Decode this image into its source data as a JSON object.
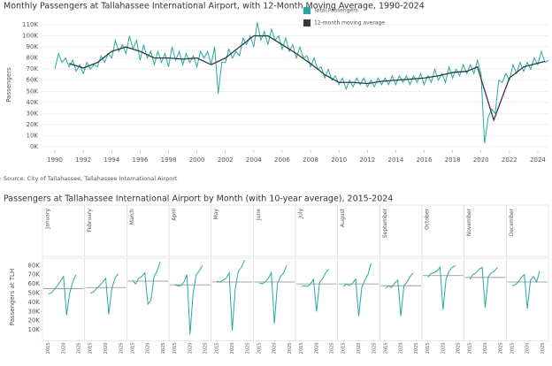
{
  "chart_data": [
    {
      "type": "line",
      "title": "Monthly Passengers at Tallahassee International Airport, with 12-Month Moving Average, 1990-2024",
      "y_label": "Passengers",
      "source": "Source: City of Tallahassee, Tallahassee International Airport",
      "xlim": [
        1989,
        2024.75
      ],
      "xticks": [
        1990,
        1992,
        1994,
        1996,
        1998,
        2000,
        2002,
        2004,
        2006,
        2008,
        2010,
        2012,
        2014,
        2016,
        2018,
        2020,
        2022,
        2024
      ],
      "ylim": [
        0,
        110000
      ],
      "yticks": [
        {
          "value": 0,
          "label": "0K"
        },
        {
          "value": 10000,
          "label": "10K"
        },
        {
          "value": 20000,
          "label": "20K"
        },
        {
          "value": 30000,
          "label": "30K"
        },
        {
          "value": 40000,
          "label": "40K"
        },
        {
          "value": 50000,
          "label": "50K"
        },
        {
          "value": 60000,
          "label": "60K"
        },
        {
          "value": 70000,
          "label": "70K"
        },
        {
          "value": 80000,
          "label": "80K"
        },
        {
          "value": 90000,
          "label": "90K"
        },
        {
          "value": 100000,
          "label": "100K"
        },
        {
          "value": 110000,
          "label": "110K"
        }
      ],
      "grid": true,
      "legend": "top",
      "series": [
        {
          "name": "Total Passengers",
          "color": "#27a9a1",
          "x": [
            1990,
            1990.25,
            1990.5,
            1990.75,
            1991,
            1991.25,
            1991.5,
            1991.75,
            1992,
            1992.25,
            1992.5,
            1992.75,
            1993,
            1993.25,
            1993.5,
            1993.75,
            1994,
            1994.25,
            1994.5,
            1994.75,
            1995,
            1995.25,
            1995.5,
            1995.75,
            1996,
            1996.25,
            1996.5,
            1996.75,
            1997,
            1997.25,
            1997.5,
            1997.75,
            1998,
            1998.25,
            1998.5,
            1998.75,
            1999,
            1999.25,
            1999.5,
            1999.75,
            2000,
            2000.25,
            2000.5,
            2000.75,
            2001,
            2001.25,
            2001.5,
            2001.75,
            2002,
            2002.25,
            2002.5,
            2002.75,
            2003,
            2003.25,
            2003.5,
            2003.75,
            2004,
            2004.25,
            2004.5,
            2004.75,
            2005,
            2005.25,
            2005.5,
            2005.75,
            2006,
            2006.25,
            2006.5,
            2006.75,
            2007,
            2007.25,
            2007.5,
            2007.75,
            2008,
            2008.25,
            2008.5,
            2008.75,
            2009,
            2009.25,
            2009.5,
            2009.75,
            2010,
            2010.25,
            2010.5,
            2010.75,
            2011,
            2011.25,
            2011.5,
            2011.75,
            2012,
            2012.25,
            2012.5,
            2012.75,
            2013,
            2013.25,
            2013.5,
            2013.75,
            2014,
            2014.25,
            2014.5,
            2014.75,
            2015,
            2015.25,
            2015.5,
            2015.75,
            2016,
            2016.25,
            2016.5,
            2016.75,
            2017,
            2017.25,
            2017.5,
            2017.75,
            2018,
            2018.25,
            2018.5,
            2018.75,
            2019,
            2019.25,
            2019.5,
            2019.75,
            2020,
            2020.25,
            2020.5,
            2020.75,
            2021,
            2021.25,
            2021.5,
            2021.75,
            2022,
            2022.25,
            2022.5,
            2022.75,
            2023,
            2023.25,
            2023.5,
            2023.75,
            2024,
            2024.25,
            2024.5,
            2024.75
          ],
          "values": [
            70000,
            84000,
            76000,
            80000,
            72000,
            78000,
            68000,
            74000,
            66000,
            76000,
            70000,
            74000,
            72000,
            82000,
            76000,
            84000,
            80000,
            96000,
            86000,
            92000,
            84000,
            100000,
            88000,
            96000,
            78000,
            92000,
            80000,
            86000,
            74000,
            86000,
            76000,
            84000,
            72000,
            90000,
            78000,
            86000,
            74000,
            84000,
            76000,
            82000,
            72000,
            86000,
            80000,
            86000,
            74000,
            90000,
            48000,
            76000,
            76000,
            88000,
            80000,
            86000,
            82000,
            98000,
            92000,
            100000,
            90000,
            112000,
            96000,
            104000,
            92000,
            106000,
            96000,
            100000,
            88000,
            98000,
            86000,
            92000,
            80000,
            90000,
            80000,
            82000,
            72000,
            80000,
            70000,
            72000,
            62000,
            70000,
            60000,
            64000,
            56000,
            62000,
            52000,
            60000,
            54000,
            62000,
            56000,
            62000,
            54000,
            60000,
            54000,
            62000,
            56000,
            62000,
            56000,
            64000,
            56000,
            64000,
            58000,
            64000,
            56000,
            64000,
            58000,
            66000,
            56000,
            64000,
            58000,
            70000,
            60000,
            66000,
            58000,
            72000,
            62000,
            70000,
            64000,
            74000,
            66000,
            74000,
            66000,
            78000,
            66000,
            3000,
            26000,
            34000,
            30000,
            60000,
            58000,
            66000,
            60000,
            74000,
            66000,
            76000,
            68000,
            76000,
            70000,
            80000,
            74000,
            86000,
            76000,
            78000
          ]
        },
        {
          "name": "12-month moving average",
          "color": "#2f3a44",
          "x": [
            1991,
            1992,
            1993,
            1994,
            1995,
            1996,
            1997,
            1998,
            1999,
            2000,
            2001,
            2002,
            2003,
            2004,
            2005,
            2006,
            2007,
            2008,
            2009,
            2010,
            2011,
            2012,
            2013,
            2014,
            2015,
            2016,
            2017,
            2018,
            2019,
            2019.75,
            2020.9,
            2022,
            2023,
            2024.5
          ],
          "values": [
            75000,
            71000,
            76000,
            86000,
            90000,
            86000,
            80000,
            80000,
            79000,
            80000,
            74000,
            80000,
            90000,
            100000,
            100000,
            92000,
            84000,
            75000,
            65000,
            58000,
            58000,
            57000,
            59000,
            60000,
            61000,
            62000,
            64000,
            67000,
            68000,
            72000,
            24000,
            62000,
            72000,
            77000
          ]
        }
      ]
    },
    {
      "type": "multiples",
      "title": "Passengers at Tallahassee International Airport by Month (with 10-year average),  2015-2024",
      "y_label": "Passengers at TLH",
      "color": "#27a9a1",
      "average_color": "#8a8a8a",
      "x": [
        2015,
        2016,
        2017,
        2018,
        2019,
        2020,
        2021,
        2022,
        2023,
        2024
      ],
      "xlim": [
        2014,
        2026
      ],
      "xticks": [
        2015,
        2020,
        2025
      ],
      "ylim": [
        0,
        88000
      ],
      "yticks": [
        {
          "value": 10000,
          "label": "10K"
        },
        {
          "value": 20000,
          "label": "20K"
        },
        {
          "value": 30000,
          "label": "30K"
        },
        {
          "value": 40000,
          "label": "40K"
        },
        {
          "value": 50000,
          "label": "50K"
        },
        {
          "value": 60000,
          "label": "60K"
        },
        {
          "value": 70000,
          "label": "70K"
        },
        {
          "value": 80000,
          "label": "80K"
        }
      ],
      "panels": [
        {
          "name": "January",
          "values": [
            49000,
            50000,
            54000,
            58000,
            63000,
            68000,
            26000,
            50000,
            62000,
            70000
          ],
          "average": 55000
        },
        {
          "name": "February",
          "values": [
            50000,
            51000,
            55000,
            58000,
            62000,
            66000,
            27000,
            55000,
            66000,
            71000
          ],
          "average": 56000
        },
        {
          "name": "March",
          "values": [
            64000,
            60000,
            66000,
            68000,
            72000,
            38000,
            42000,
            68000,
            74000,
            84000
          ],
          "average": 63000
        },
        {
          "name": "April",
          "values": [
            59000,
            58000,
            58000,
            62000,
            70000,
            5000,
            50000,
            70000,
            74000,
            80000
          ],
          "average": 59000
        },
        {
          "name": "May",
          "values": [
            63000,
            62000,
            64000,
            66000,
            72000,
            9000,
            55000,
            74000,
            78000,
            86000
          ],
          "average": 62000
        },
        {
          "name": "June",
          "values": [
            61000,
            60000,
            62000,
            66000,
            72000,
            17000,
            60000,
            68000,
            72000,
            80000
          ],
          "average": 62000
        },
        {
          "name": "July",
          "values": [
            57000,
            58000,
            57000,
            60000,
            65000,
            30000,
            62000,
            66000,
            72000,
            76000
          ],
          "average": 60000
        },
        {
          "name": "August",
          "values": [
            57000,
            60000,
            58000,
            61000,
            65000,
            25000,
            56000,
            64000,
            70000,
            82000
          ],
          "average": 60000
        },
        {
          "name": "September",
          "values": [
            55000,
            58000,
            56000,
            61000,
            64000,
            25000,
            58000,
            62000,
            68000,
            72000
          ],
          "average": 58000
        },
        {
          "name": "October",
          "values": [
            67000,
            71000,
            72000,
            74000,
            78000,
            32000,
            66000,
            74000,
            78000,
            80000
          ],
          "average": 69000
        },
        {
          "name": "November",
          "values": [
            65000,
            70000,
            72000,
            76000,
            78000,
            34000,
            68000,
            72000,
            74000,
            78000
          ],
          "average": 67000
        },
        {
          "name": "December",
          "values": [
            58000,
            59000,
            62000,
            67000,
            70000,
            33000,
            64000,
            68000,
            62000,
            74000
          ],
          "average": 62000
        }
      ]
    }
  ]
}
